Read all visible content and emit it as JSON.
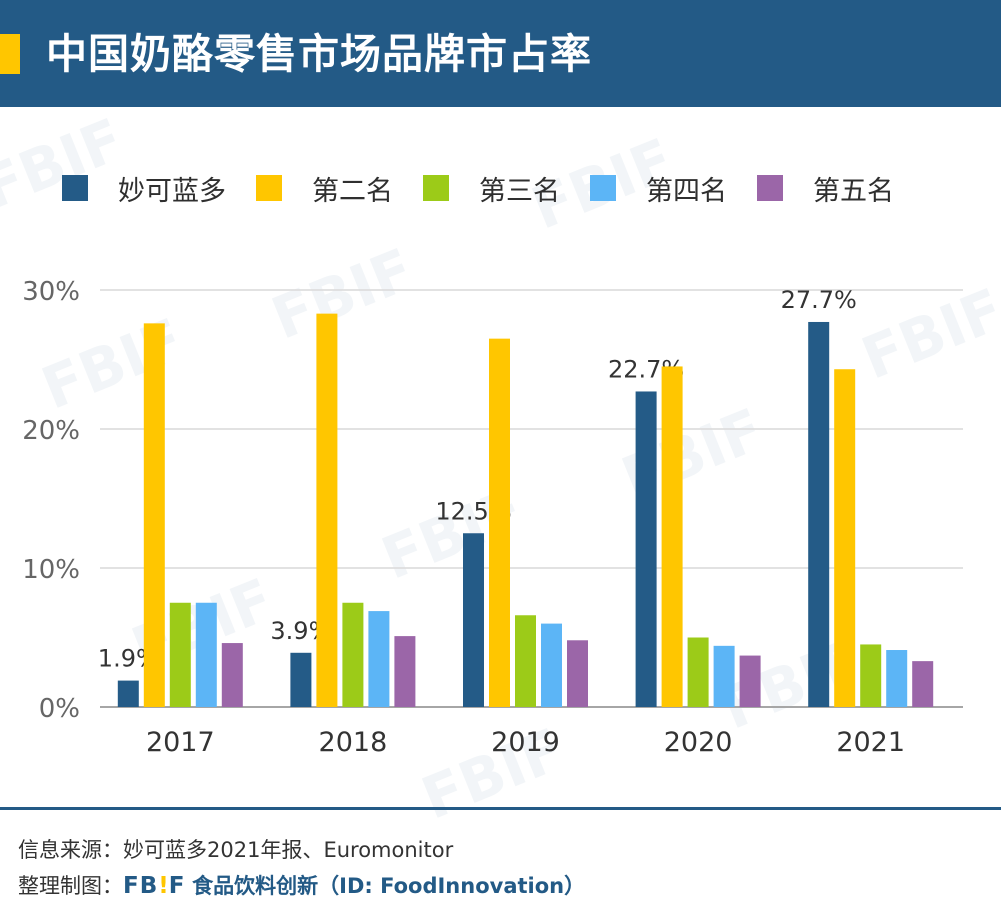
{
  "header": {
    "title": "中国奶酪零售市场品牌市占率"
  },
  "legend": [
    {
      "name": "妙可蓝多",
      "color": "#245b87"
    },
    {
      "name": "第二名",
      "color": "#ffc600"
    },
    {
      "name": "第三名",
      "color": "#9ccb18"
    },
    {
      "name": "第四名",
      "color": "#5cb5f6"
    },
    {
      "name": "第五名",
      "color": "#9b66a8"
    }
  ],
  "chart_data": {
    "type": "bar",
    "categories": [
      "2017",
      "2018",
      "2019",
      "2020",
      "2021"
    ],
    "ylim": [
      0,
      30
    ],
    "yticks": [
      0,
      10,
      20,
      30
    ],
    "ytick_labels": [
      "0%",
      "10%",
      "20%",
      "30%"
    ],
    "grid": true,
    "legend_position": "top",
    "series": [
      {
        "name": "妙可蓝多",
        "color": "#245b87",
        "values": [
          1.9,
          3.9,
          12.5,
          22.7,
          27.7
        ],
        "data_labels": [
          "1.9%",
          "3.9%",
          "12.5%",
          "22.7%",
          "27.7%"
        ]
      },
      {
        "name": "第二名",
        "color": "#ffc600",
        "values": [
          27.6,
          28.3,
          26.5,
          24.5,
          24.3
        ]
      },
      {
        "name": "第三名",
        "color": "#9ccb18",
        "values": [
          7.5,
          7.5,
          6.6,
          5.0,
          4.5
        ]
      },
      {
        "name": "第四名",
        "color": "#5cb5f6",
        "values": [
          7.5,
          6.9,
          6.0,
          4.4,
          4.1
        ]
      },
      {
        "name": "第五名",
        "color": "#9b66a8",
        "values": [
          4.6,
          5.1,
          4.8,
          3.7,
          3.3
        ]
      }
    ]
  },
  "footer": {
    "source_label": "信息来源：",
    "source_text": "妙可蓝多2021年报、Euromonitor",
    "compiled_label": "整理制图：",
    "brand_logo_left": "FB",
    "brand_logo_bang": "!",
    "brand_logo_right": "F",
    "brand_name": "食品饮料创新（ID: FoodInnovation）"
  },
  "watermark": {
    "text": "FBIF"
  }
}
